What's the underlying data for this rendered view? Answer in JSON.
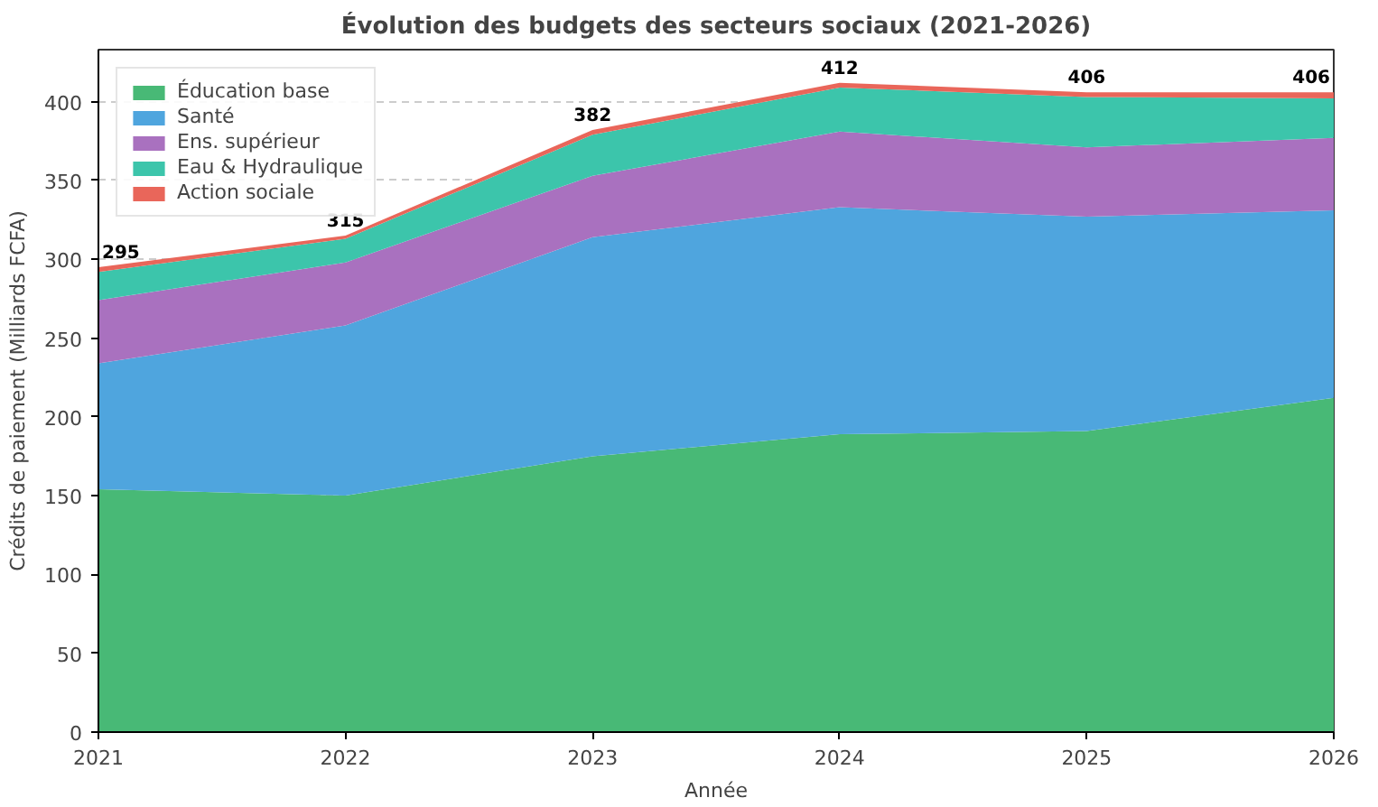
{
  "chart_data": {
    "type": "area",
    "stacked": true,
    "title": "Évolution des budgets des secteurs sociaux (2021-2026)",
    "xlabel": "Année",
    "ylabel": "Crédits de paiement (Milliards FCFA)",
    "x": [
      2021,
      2022,
      2023,
      2024,
      2025,
      2026
    ],
    "series": [
      {
        "name": "Éducation base",
        "color": "#48b976",
        "values": [
          154,
          150,
          175,
          189,
          191,
          212
        ]
      },
      {
        "name": "Santé",
        "color": "#4fa5de",
        "values": [
          80,
          108,
          139,
          144,
          136,
          119
        ]
      },
      {
        "name": "Ens. supérieur",
        "color": "#a971bf",
        "values": [
          40,
          40,
          39,
          48,
          44,
          46
        ]
      },
      {
        "name": "Eau & Hydraulique",
        "color": "#3cc5ab",
        "values": [
          18,
          15,
          26,
          28,
          32,
          25
        ]
      },
      {
        "name": "Action sociale",
        "color": "#e9665a",
        "values": [
          3,
          2,
          3,
          3,
          3,
          4
        ]
      }
    ],
    "totals": [
      "295",
      "315",
      "382",
      "412",
      "406",
      "406"
    ],
    "xlim": [
      2021,
      2026
    ],
    "xticks": [
      2021,
      2022,
      2023,
      2024,
      2025,
      2026
    ],
    "ylim": [
      0,
      433
    ],
    "yticks": [
      0,
      50,
      100,
      150,
      200,
      250,
      300,
      350,
      400
    ],
    "grid": "y",
    "legend": "top left"
  }
}
